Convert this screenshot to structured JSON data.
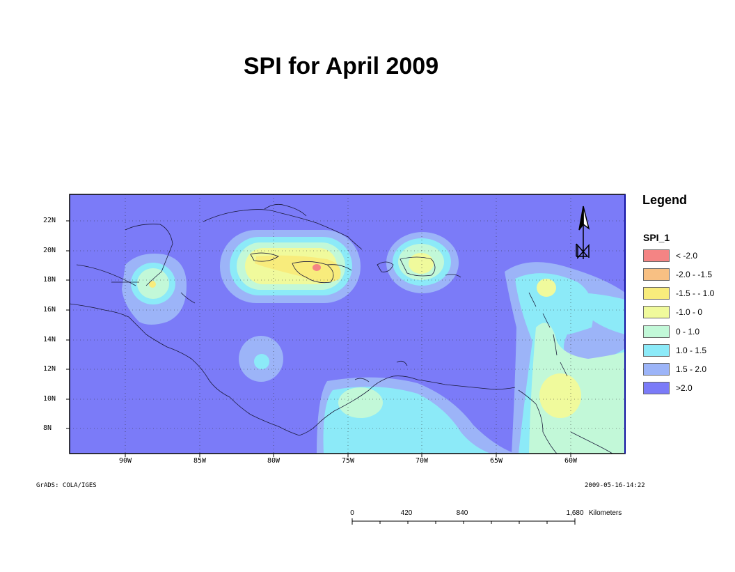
{
  "title": "SPI for April 2009",
  "map": {
    "lat_labels": [
      "22N",
      "20N",
      "18N",
      "16N",
      "14N",
      "12N",
      "10N",
      "8N"
    ],
    "lon_labels": [
      "90W",
      "85W",
      "80W",
      "75W",
      "70W",
      "65W",
      "60W"
    ],
    "credit": "GrADS: COLA/IGES",
    "timestamp": "2009-05-16-14:22",
    "background_class": ">2.0"
  },
  "north_arrow": {
    "label": "N",
    "icon": "north-arrow-icon"
  },
  "legend": {
    "title": "Legend",
    "field": "SPI_1",
    "items": [
      {
        "label": "< -2.0",
        "color": "#f48484"
      },
      {
        "label": "-2.0 - -1.5",
        "color": "#f8c083"
      },
      {
        "label": "-1.5 -  - 1.0",
        "color": "#f8ec7c"
      },
      {
        "label": "-1.0 - 0",
        "color": "#f0fa9c"
      },
      {
        "label": "0 - 1.0",
        "color": "#c2f8d8"
      },
      {
        "label": "1.0 - 1.5",
        "color": "#8ceaf8"
      },
      {
        "label": "1.5 - 2.0",
        "color": "#9cb4f8"
      },
      {
        "label": ">2.0",
        "color": "#7b7bf8"
      }
    ]
  },
  "scale_bar": {
    "labels": [
      "0",
      "420",
      "840",
      "1,680"
    ],
    "unit": "Kilometers"
  }
}
